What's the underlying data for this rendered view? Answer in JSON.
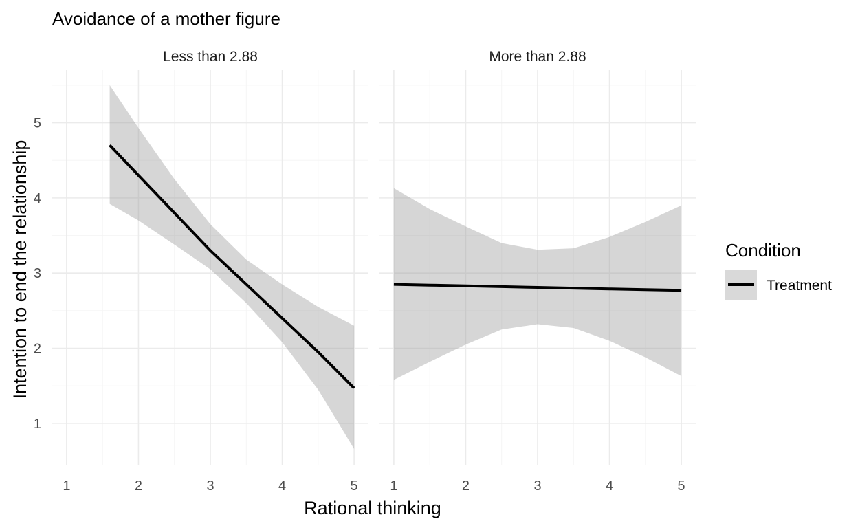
{
  "chart_data": {
    "type": "line",
    "title": "Avoidance of a mother figure",
    "xlabel": "Rational thinking",
    "ylabel": "Intention to end the relationship",
    "xlim": [
      0.8,
      5.2
    ],
    "ylim": [
      0.45,
      5.7
    ],
    "x_ticks": [
      1,
      2,
      3,
      4,
      5
    ],
    "y_ticks": [
      1,
      2,
      3,
      4,
      5
    ],
    "grid": true,
    "legend": {
      "title": "Condition",
      "position": "right",
      "entries": [
        {
          "label": "Treatment",
          "line_color": "#000000",
          "band_color": "#d9d9d9"
        }
      ]
    },
    "facets": [
      {
        "label": "Less than 2.88",
        "series": [
          {
            "name": "Treatment",
            "x": [
              1.6,
              2.0,
              2.5,
              3.0,
              3.5,
              4.0,
              4.5,
              5.0
            ],
            "y": [
              4.7,
              4.3,
              3.8,
              3.3,
              2.85,
              2.4,
              1.95,
              1.47
            ],
            "lower": [
              3.92,
              3.7,
              3.38,
              3.05,
              2.6,
              2.08,
              1.45,
              0.66
            ],
            "upper": [
              5.5,
              4.93,
              4.25,
              3.65,
              3.18,
              2.85,
              2.55,
              2.3
            ]
          }
        ]
      },
      {
        "label": "More than 2.88",
        "series": [
          {
            "name": "Treatment",
            "x": [
              1.0,
              1.5,
              2.0,
              2.5,
              3.0,
              3.5,
              4.0,
              4.5,
              5.0
            ],
            "y": [
              2.85,
              2.84,
              2.83,
              2.82,
              2.81,
              2.8,
              2.79,
              2.78,
              2.77
            ],
            "lower": [
              1.58,
              1.82,
              2.05,
              2.25,
              2.32,
              2.27,
              2.1,
              1.88,
              1.63
            ],
            "upper": [
              4.13,
              3.85,
              3.62,
              3.4,
              3.31,
              3.33,
              3.48,
              3.68,
              3.9
            ]
          }
        ]
      }
    ]
  }
}
